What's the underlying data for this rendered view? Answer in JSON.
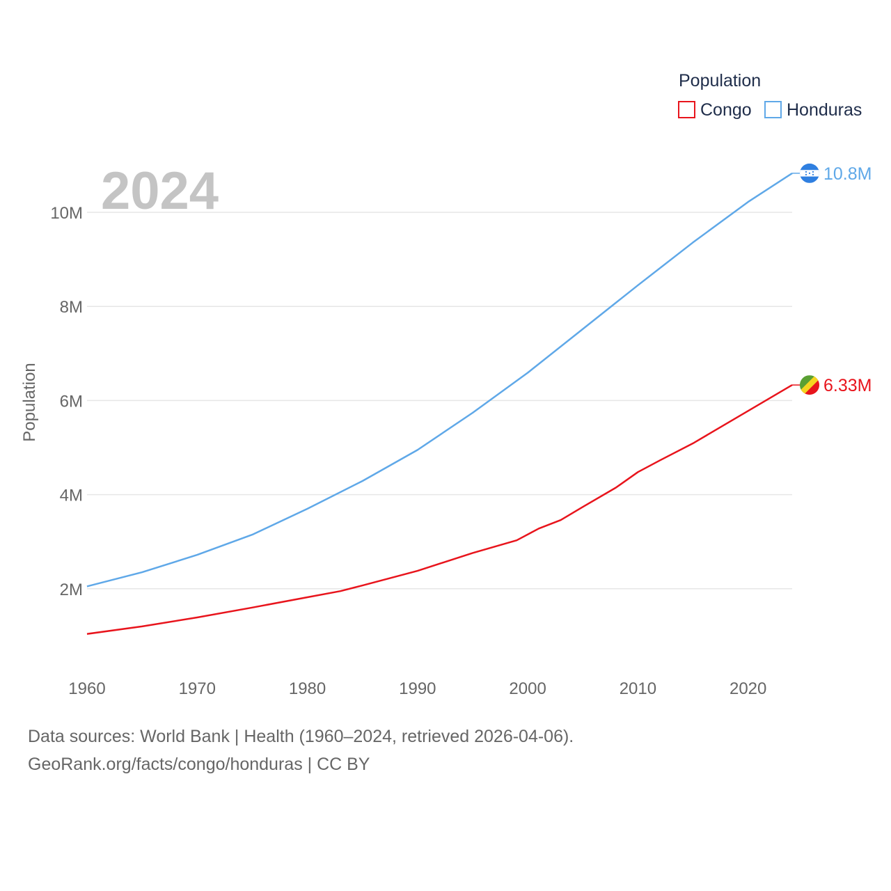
{
  "chart_data": {
    "type": "line",
    "ylabel": "Population",
    "xlabel": "",
    "xlim": [
      1960,
      2024
    ],
    "ylim": [
      0,
      11000000
    ],
    "x_ticks": [
      1960,
      1970,
      1980,
      1990,
      2000,
      2010,
      2020
    ],
    "x_tick_labels": [
      "1960",
      "1970",
      "1980",
      "1990",
      "2000",
      "2010",
      "2020"
    ],
    "y_ticks": [
      2000000,
      4000000,
      6000000,
      8000000,
      10000000
    ],
    "y_tick_labels": [
      "2M",
      "4M",
      "6M",
      "8M",
      "10M"
    ],
    "year_label": "2024",
    "legend": {
      "title": "Population",
      "position": "top-right"
    },
    "series": [
      {
        "name": "Congo",
        "color": "#e8141c",
        "flag_icon": "congo-flag-icon",
        "end_label": "6.33M",
        "points": [
          [
            1960,
            1040000
          ],
          [
            1965,
            1200000
          ],
          [
            1970,
            1390000
          ],
          [
            1975,
            1600000
          ],
          [
            1980,
            1820000
          ],
          [
            1983,
            1950000
          ],
          [
            1985,
            2070000
          ],
          [
            1990,
            2380000
          ],
          [
            1995,
            2760000
          ],
          [
            1999,
            3030000
          ],
          [
            2001,
            3280000
          ],
          [
            2003,
            3460000
          ],
          [
            2005,
            3740000
          ],
          [
            2008,
            4150000
          ],
          [
            2010,
            4480000
          ],
          [
            2012,
            4730000
          ],
          [
            2015,
            5090000
          ],
          [
            2020,
            5780000
          ],
          [
            2024,
            6330000
          ]
        ]
      },
      {
        "name": "Honduras",
        "color": "#5fa8e8",
        "flag_icon": "honduras-flag-icon",
        "end_label": "10.8M",
        "points": [
          [
            1960,
            2050000
          ],
          [
            1965,
            2350000
          ],
          [
            1970,
            2720000
          ],
          [
            1975,
            3150000
          ],
          [
            1980,
            3700000
          ],
          [
            1985,
            4290000
          ],
          [
            1990,
            4950000
          ],
          [
            1995,
            5740000
          ],
          [
            2000,
            6590000
          ],
          [
            2005,
            7520000
          ],
          [
            2010,
            8450000
          ],
          [
            2015,
            9360000
          ],
          [
            2020,
            10220000
          ],
          [
            2024,
            10830000
          ]
        ]
      }
    ]
  },
  "footer": {
    "sources": "Data sources: World Bank | Health (1960–2024, retrieved 2026-04-06).",
    "link": "GeoRank.org/facts/congo/honduras | CC BY"
  }
}
